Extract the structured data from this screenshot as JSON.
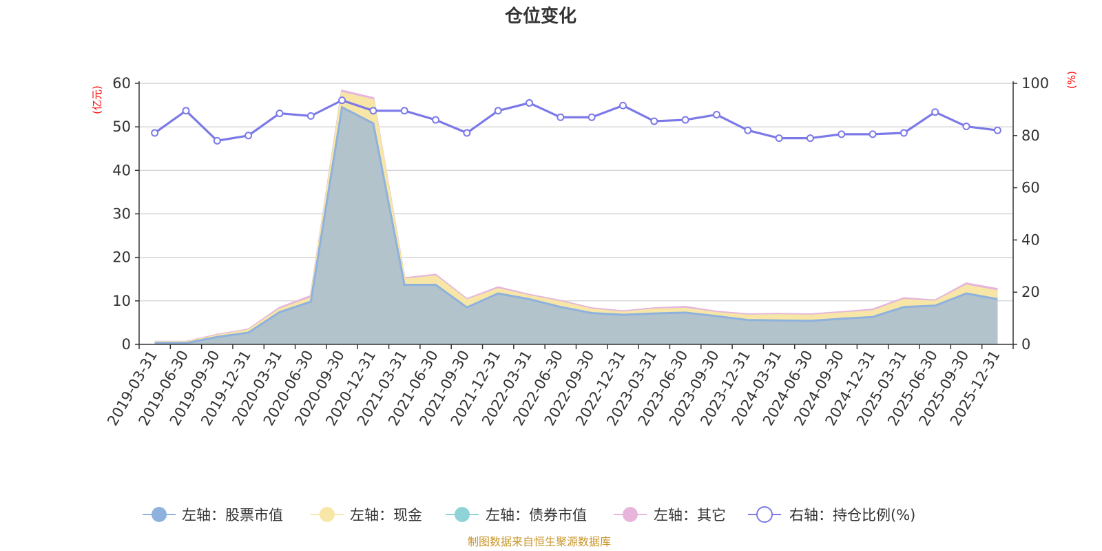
{
  "title": "仓位变化",
  "source_text": "制图数据来自恒生聚源数据库",
  "left_unit": "(亿元)",
  "right_unit": "(%)",
  "colors": {
    "stock": "#8eb1de",
    "cash": "#f7e6a6",
    "bond": "#8ed4d6",
    "other": "#e7b5dc",
    "ratio": "#7b79e8",
    "unit_text": "#ff0000",
    "source_text": "#c8962a",
    "grid": "#cccccc",
    "axis": "#333333"
  },
  "chart_data": {
    "type": "area",
    "title": "仓位变化",
    "categories": [
      "2019-03-31",
      "2019-06-30",
      "2019-09-30",
      "2019-12-31",
      "2020-03-31",
      "2020-06-30",
      "2020-09-30",
      "2020-12-31",
      "2021-03-31",
      "2021-06-30",
      "2021-09-30",
      "2021-12-31",
      "2022-03-31",
      "2022-06-30",
      "2022-09-30",
      "2022-12-31",
      "2023-03-31",
      "2023-06-30",
      "2023-09-30",
      "2023-12-31",
      "2024-03-31",
      "2024-06-30",
      "2024-09-30",
      "2024-12-31",
      "2025-03-31",
      "2025-06-30",
      "2025-09-30",
      "2025-12-31"
    ],
    "y_left": {
      "unit": "(亿元)",
      "ylim": [
        0,
        60
      ],
      "ticks": [
        0,
        10,
        20,
        30,
        40,
        50,
        60
      ]
    },
    "y_right": {
      "unit": "(%)",
      "ylim": [
        0,
        100
      ],
      "ticks": [
        0,
        20,
        40,
        60,
        80,
        100
      ]
    },
    "grid": true,
    "legend_position": "bottom",
    "series": [
      {
        "name": "左轴：股票市值",
        "axis": "left",
        "stack": true,
        "color": "#8eb1de",
        "values": [
          0.3,
          0.3,
          1.7,
          2.7,
          7.4,
          9.8,
          54.5,
          50.8,
          13.7,
          13.7,
          8.5,
          11.7,
          10.4,
          8.6,
          7.2,
          6.8,
          7.1,
          7.3,
          6.5,
          5.6,
          5.5,
          5.4,
          5.9,
          6.3,
          8.6,
          8.9,
          11.7,
          10.4
        ]
      },
      {
        "name": "左轴：现金",
        "axis": "left",
        "stack": true,
        "color": "#f7e6a6",
        "values": [
          0.2,
          0.2,
          0.3,
          0.5,
          0.6,
          0.8,
          3.3,
          5.3,
          1.2,
          1.9,
          1.6,
          1.0,
          0.7,
          1.1,
          0.8,
          0.5,
          0.9,
          0.9,
          0.7,
          1.0,
          1.2,
          1.2,
          1.2,
          1.3,
          1.6,
          0.9,
          1.8,
          1.8
        ]
      },
      {
        "name": "左轴：债券市值",
        "axis": "left",
        "stack": true,
        "color": "#8ed4d6",
        "values": [
          0,
          0,
          0,
          0,
          0,
          0,
          0,
          0,
          0,
          0,
          0,
          0,
          0,
          0,
          0,
          0,
          0,
          0,
          0,
          0,
          0,
          0,
          0,
          0,
          0,
          0,
          0,
          0
        ]
      },
      {
        "name": "左轴：其它",
        "axis": "left",
        "stack": true,
        "color": "#e7b5dc",
        "values": [
          0.1,
          0.1,
          0.2,
          0.2,
          0.4,
          0.5,
          0.5,
          0.5,
          0.3,
          0.4,
          0.3,
          0.4,
          0.3,
          0.3,
          0.3,
          0.3,
          0.3,
          0.4,
          0.3,
          0.3,
          0.3,
          0.3,
          0.3,
          0.4,
          0.4,
          0.3,
          0.5,
          0.5
        ]
      },
      {
        "name": "右轴：持仓比例(%)",
        "axis": "right",
        "type": "line",
        "color": "#7b79e8",
        "values": [
          81.0,
          89.5,
          78.0,
          80.0,
          88.5,
          87.5,
          93.5,
          89.5,
          89.5,
          86.0,
          81.0,
          89.5,
          92.5,
          87.0,
          87.0,
          91.5,
          85.5,
          86.0,
          88.0,
          82.0,
          79.0,
          79.0,
          80.5,
          80.5,
          81.0,
          89.0,
          83.5,
          82.0
        ]
      }
    ]
  }
}
